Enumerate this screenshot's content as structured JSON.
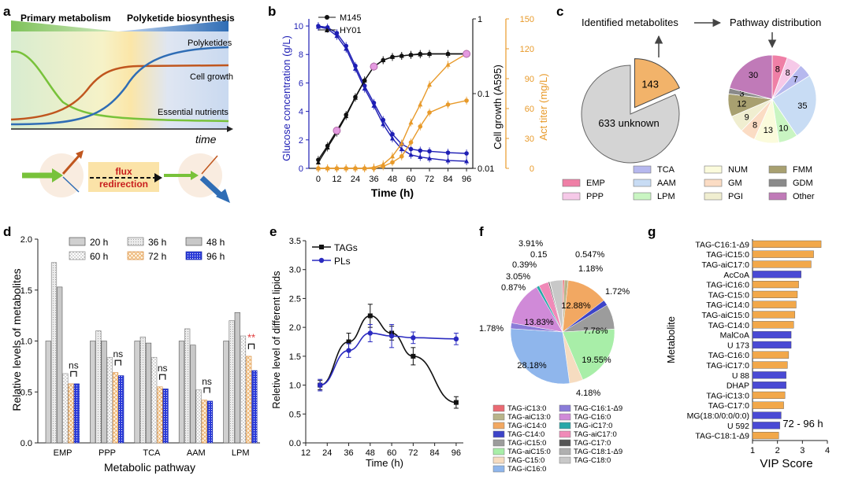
{
  "panels": {
    "a": {
      "letter": "a",
      "header_left": "Primary metabolism",
      "header_right": "Polyketide biosynthesis",
      "curve_labels": [
        "Polyketides",
        "Cell growth",
        "Essential nutrients"
      ],
      "axis_label": "time",
      "flux_text_1": "flux",
      "flux_text_2": "redirection",
      "colors": {
        "polyketides": "#2f6db5",
        "cell_growth": "#c0561e",
        "nutrients": "#78c23a",
        "flux": "#c81e1e"
      }
    },
    "b": {
      "letter": "b"
    },
    "c": {
      "letter": "c",
      "left_title": "Identified metabolites",
      "right_title": "Pathway distribution",
      "unknown_label": "633 unknown",
      "identified_label": "143",
      "legend": [
        {
          "label": "EMP",
          "color": "#ef7fa6"
        },
        {
          "label": "PPP",
          "color": "#f6c9e8"
        },
        {
          "label": "TCA",
          "color": "#b6b8ee"
        },
        {
          "label": "AAM",
          "color": "#c8dcf4"
        },
        {
          "label": "LPM",
          "color": "#c9f5c2"
        },
        {
          "label": "NUM",
          "color": "#fbfbdc"
        },
        {
          "label": "GM",
          "color": "#fbdcc4"
        },
        {
          "label": "PGI",
          "color": "#f0eed0"
        },
        {
          "label": "FMM",
          "color": "#a8a070"
        },
        {
          "label": "GDM",
          "color": "#8a8a8a"
        },
        {
          "label": "Other",
          "color": "#c07ab8"
        }
      ]
    },
    "d": {
      "letter": "d"
    },
    "e": {
      "letter": "e"
    },
    "f": {
      "letter": "f",
      "legend": [
        {
          "label": "TAG-iC13:0",
          "color": "#ea6a73"
        },
        {
          "label": "TAG-aiC13:0",
          "color": "#b8b48a"
        },
        {
          "label": "TAG-iC14:0",
          "color": "#f2a862"
        },
        {
          "label": "TAG-C14:0",
          "color": "#3d44c8"
        },
        {
          "label": "TAG-iC15:0",
          "color": "#9c9c9c"
        },
        {
          "label": "TAG-aiC15:0",
          "color": "#a8eea8"
        },
        {
          "label": "TAG-C15:0",
          "color": "#f6dcc0"
        },
        {
          "label": "TAG-iC16:0",
          "color": "#8fb6ec"
        },
        {
          "label": "TAG-C16:1-Δ9",
          "color": "#8a7cd8"
        },
        {
          "label": "TAG-C16:0",
          "color": "#d08ad8"
        },
        {
          "label": "TAG-iC17:0",
          "color": "#28a8a8"
        },
        {
          "label": "TAG-aiC17:0",
          "color": "#f08ab8"
        },
        {
          "label": "TAG-C17:0",
          "color": "#555555"
        },
        {
          "label": "TAG-C18:1-Δ9",
          "color": "#b0b0b0"
        },
        {
          "label": "TAG-C18:0",
          "color": "#c8c8c8"
        }
      ]
    },
    "g": {
      "letter": "g",
      "annotation": "72 - 96 h"
    }
  },
  "chart_data": [
    {
      "panel": "b",
      "type": "line",
      "x": [
        0,
        6,
        12,
        18,
        24,
        30,
        36,
        42,
        48,
        54,
        60,
        66,
        72,
        84,
        96
      ],
      "xlabel": "Time (h)",
      "xticks": [
        0,
        12,
        24,
        36,
        48,
        60,
        72,
        84,
        96
      ],
      "xlim": [
        -2,
        98
      ],
      "left_axis": {
        "label": "Glucose concentration (g/L)",
        "ticks": [
          0,
          2,
          4,
          6,
          8,
          10
        ],
        "ylim": [
          0,
          10.5
        ],
        "color": "#1e1eb4"
      },
      "log_axis": {
        "label": "Cell growth (A595)",
        "tick_labels": [
          "0.01",
          "0.1",
          "1"
        ],
        "ylim": [
          0.01,
          1
        ],
        "scale": "log"
      },
      "right_axis": {
        "label": "Act titer (mg/L)",
        "ticks": [
          0,
          30,
          60,
          90,
          120,
          150
        ],
        "ylim": [
          0,
          150
        ],
        "color": "#e89a2a"
      },
      "legend": [
        "M145",
        "HY01"
      ],
      "series": [
        {
          "name": "M145",
          "measure": "glucose",
          "axis": "left",
          "color": "#1e1eb4",
          "x": [
            0,
            6,
            12,
            18,
            24,
            30,
            36,
            42,
            48,
            54,
            60,
            66,
            72,
            84,
            96
          ],
          "values": [
            10,
            9.9,
            9.5,
            8.6,
            7.2,
            5.8,
            4.6,
            3.4,
            2.4,
            1.7,
            1.35,
            1.25,
            1.2,
            1.1,
            1.05
          ]
        },
        {
          "name": "HY01",
          "measure": "glucose",
          "axis": "left",
          "color": "#1e1eb4",
          "x": [
            0,
            6,
            12,
            18,
            24,
            30,
            36,
            42,
            48,
            54,
            60,
            66,
            72,
            84,
            96
          ],
          "values": [
            9.95,
            9.8,
            9.3,
            8.4,
            7.0,
            5.6,
            4.4,
            3.1,
            2.1,
            1.35,
            0.95,
            0.8,
            0.7,
            0.55,
            0.5
          ]
        },
        {
          "name": "M145",
          "measure": "growth",
          "axis": "log",
          "color": "#111111",
          "x": [
            0,
            6,
            12,
            18,
            24,
            30,
            36,
            42,
            48,
            54,
            60,
            66,
            72,
            84,
            96
          ],
          "values": [
            0.013,
            0.02,
            0.032,
            0.052,
            0.09,
            0.15,
            0.23,
            0.28,
            0.31,
            0.32,
            0.33,
            0.34,
            0.34,
            0.34,
            0.34
          ]
        },
        {
          "name": "HY01",
          "measure": "growth",
          "axis": "log",
          "color": "#111111",
          "x": [
            0,
            6,
            12,
            18,
            24,
            30,
            36,
            42,
            48,
            54,
            60,
            66,
            72,
            84,
            96
          ],
          "values": [
            0.012,
            0.019,
            0.03,
            0.05,
            0.088,
            0.15,
            0.23,
            0.28,
            0.31,
            0.32,
            0.33,
            0.335,
            0.34,
            0.34,
            0.34
          ]
        },
        {
          "name": "M145",
          "measure": "act",
          "axis": "right",
          "color": "#e89a2a",
          "x": [
            0,
            6,
            12,
            18,
            24,
            30,
            36,
            42,
            48,
            54,
            60,
            66,
            72,
            84,
            96
          ],
          "values": [
            0,
            0,
            0,
            0,
            0,
            0,
            0,
            2,
            6,
            12,
            26,
            42,
            56,
            64,
            68
          ]
        },
        {
          "name": "HY01",
          "measure": "act",
          "axis": "right",
          "color": "#e89a2a",
          "x": [
            0,
            6,
            12,
            18,
            24,
            30,
            36,
            42,
            48,
            54,
            60,
            66,
            72,
            84,
            96
          ],
          "values": [
            0,
            0,
            0,
            0,
            0,
            0,
            1,
            4,
            12,
            25,
            46,
            64,
            84,
            104,
            115
          ]
        }
      ]
    },
    {
      "panel": "c",
      "type": "pie",
      "left_pie": [
        {
          "label": "633 unknown",
          "value": 633
        },
        {
          "label": "143",
          "value": 143
        }
      ],
      "right_pie": [
        {
          "label": "EMP",
          "value": 8
        },
        {
          "label": "PPP",
          "value": 8
        },
        {
          "label": "TCA",
          "value": 7
        },
        {
          "label": "AAM",
          "value": 35
        },
        {
          "label": "LPM",
          "value": 10
        },
        {
          "label": "NUM",
          "value": 13
        },
        {
          "label": "GM",
          "value": 8
        },
        {
          "label": "PGI",
          "value": 9
        },
        {
          "label": "FMM",
          "value": 12
        },
        {
          "label": "GDM",
          "value": 3
        },
        {
          "label": "Other",
          "value": 30
        }
      ]
    },
    {
      "panel": "d",
      "type": "bar",
      "categories": [
        "EMP",
        "PPP",
        "TCA",
        "AAM",
        "LPM"
      ],
      "xlabel": "Metabolic pathway",
      "ylabel": "Relative levels of metabolites",
      "ylim": [
        0,
        2.0
      ],
      "yticks": [
        "0.0",
        "0.5",
        "1.0",
        "1.5",
        "2.0"
      ],
      "legend": [
        "20 h",
        "36 h",
        "48 h",
        "60 h",
        "72 h",
        "96 h"
      ],
      "series": [
        {
          "name": "20 h",
          "values": [
            1.0,
            1.0,
            1.0,
            1.0,
            1.0
          ]
        },
        {
          "name": "36 h",
          "values": [
            1.77,
            1.1,
            1.04,
            1.12,
            1.2
          ]
        },
        {
          "name": "48 h",
          "values": [
            1.53,
            1.0,
            0.98,
            0.96,
            1.28
          ]
        },
        {
          "name": "60 h",
          "values": [
            0.68,
            0.84,
            0.84,
            0.52,
            1.05
          ]
        },
        {
          "name": "72 h",
          "values": [
            0.58,
            0.69,
            0.55,
            0.42,
            0.85
          ]
        },
        {
          "name": "96 h",
          "values": [
            0.58,
            0.66,
            0.53,
            0.41,
            0.71
          ]
        }
      ],
      "annotations": [
        "ns",
        "ns",
        "ns",
        "ns",
        "**"
      ]
    },
    {
      "panel": "e",
      "type": "line",
      "xlabel": "Time (h)",
      "ylabel": "Reletive level of different lipids",
      "xticks": [
        12,
        24,
        36,
        48,
        60,
        72,
        84,
        96
      ],
      "yticks": [
        "0.0",
        "0.5",
        "1.0",
        "1.5",
        "2.0",
        "2.5",
        "3.0",
        "3.5"
      ],
      "xlim": [
        12,
        100
      ],
      "ylim": [
        0,
        3.5
      ],
      "x": [
        20,
        36,
        48,
        60,
        72,
        96
      ],
      "series": [
        {
          "name": "TAGs",
          "color": "#111111",
          "values": [
            1.0,
            1.75,
            2.2,
            1.9,
            1.5,
            0.7
          ]
        },
        {
          "name": "PLs",
          "color": "#2a2ac0",
          "values": [
            1.0,
            1.6,
            1.9,
            1.85,
            1.82,
            1.8
          ]
        }
      ]
    },
    {
      "panel": "f",
      "type": "pie",
      "slices": [
        {
          "label": "TAG-iC13:0",
          "value": 0.547
        },
        {
          "label": "TAG-aiC13:0",
          "value": 1.18
        },
        {
          "label": "TAG-iC14:0",
          "value": 12.88
        },
        {
          "label": "TAG-C14:0",
          "value": 1.72
        },
        {
          "label": "TAG-iC15:0",
          "value": 7.78
        },
        {
          "label": "TAG-aiC15:0",
          "value": 19.55
        },
        {
          "label": "TAG-C15:0",
          "value": 4.18
        },
        {
          "label": "TAG-iC16:0",
          "value": 28.18
        },
        {
          "label": "TAG-C16:1-Δ9",
          "value": 1.78
        },
        {
          "label": "TAG-C16:0",
          "value": 13.83
        },
        {
          "label": "TAG-iC17:0",
          "value": 0.87
        },
        {
          "label": "TAG-aiC17:0",
          "value": 3.05
        },
        {
          "label": "TAG-C17:0",
          "value": 0.39
        },
        {
          "label": "TAG-C18:1-Δ9",
          "value": 0.15
        },
        {
          "label": "TAG-C18:0",
          "value": 3.91
        }
      ],
      "labels": [
        "3.91%",
        "0.15",
        "0.39%",
        "3.05%",
        "0.87%",
        "0.547%",
        "1.18%",
        "1.72%",
        "12.88%",
        "7.78%",
        "19.55%",
        "4.18%",
        "28.18%",
        "1.78%",
        "13.83%"
      ]
    },
    {
      "panel": "g",
      "type": "bar",
      "orientation": "horizontal",
      "ylabel": "Metabolite",
      "xlabel": "VIP Score",
      "xlim": [
        1,
        4
      ],
      "xticks": [
        1,
        2,
        3,
        4
      ],
      "categories": [
        "TAG-C16:1-Δ9",
        "TAG-iC15:0",
        "TAG-aiC17:0",
        "AcCoA",
        "TAG-iC16:0",
        "TAG-C15:0",
        "TAG-iC14:0",
        "TAG-aiC15:0",
        "TAG-C14:0",
        "MalCoA",
        "U 173",
        "TAG-C16:0",
        "TAG-iC17:0",
        "U 88",
        "DHAP",
        "TAG-iC13:0",
        "TAG-C17:0",
        "MG(18:0/0:0/0:0)",
        "U 592",
        "TAG-C18:1-Δ9"
      ],
      "values": [
        3.75,
        3.45,
        3.35,
        2.95,
        2.85,
        2.8,
        2.75,
        2.7,
        2.65,
        2.55,
        2.55,
        2.45,
        2.4,
        2.35,
        2.35,
        2.3,
        2.25,
        2.15,
        2.1,
        2.05
      ],
      "colors": [
        "#f2a84a",
        "#f2a84a",
        "#f2a84a",
        "#4a4ad4",
        "#f2a84a",
        "#f2a84a",
        "#f2a84a",
        "#f2a84a",
        "#f2a84a",
        "#4a4ad4",
        "#4a4ad4",
        "#f2a84a",
        "#f2a84a",
        "#4a4ad4",
        "#4a4ad4",
        "#f2a84a",
        "#f2a84a",
        "#4a4ad4",
        "#4a4ad4",
        "#f2a84a"
      ]
    }
  ]
}
